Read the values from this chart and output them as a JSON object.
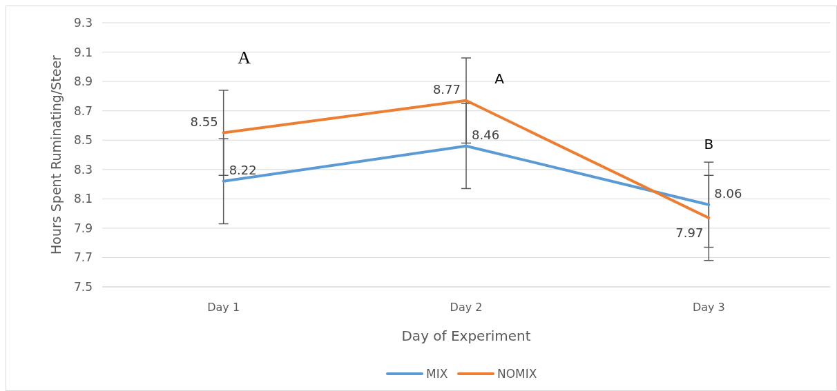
{
  "chart_data": {
    "type": "line",
    "xlabel": "Day of Experiment",
    "ylabel": "Hours Spent Ruminating/Steer",
    "categories": [
      "Day 1",
      "Day 2",
      "Day 3"
    ],
    "series": [
      {
        "name": "MIX",
        "color": "#5b9bd5",
        "values": [
          8.22,
          8.46,
          8.06
        ],
        "errors": [
          0.29,
          0.29,
          0.29
        ]
      },
      {
        "name": "NOMIX",
        "color": "#ed7d31",
        "values": [
          8.55,
          8.77,
          7.97
        ],
        "errors": [
          0.29,
          0.29,
          0.29
        ]
      }
    ],
    "ylim": [
      7.5,
      9.3
    ],
    "yticks": [
      7.5,
      7.7,
      7.9,
      8.1,
      8.3,
      8.5,
      8.7,
      8.9,
      9.1,
      9.3
    ],
    "grid": "y",
    "legend": "bottom",
    "data_labels": true,
    "marker": "none",
    "line_style": "solid",
    "annotations": [
      "A",
      "A",
      "B"
    ]
  }
}
